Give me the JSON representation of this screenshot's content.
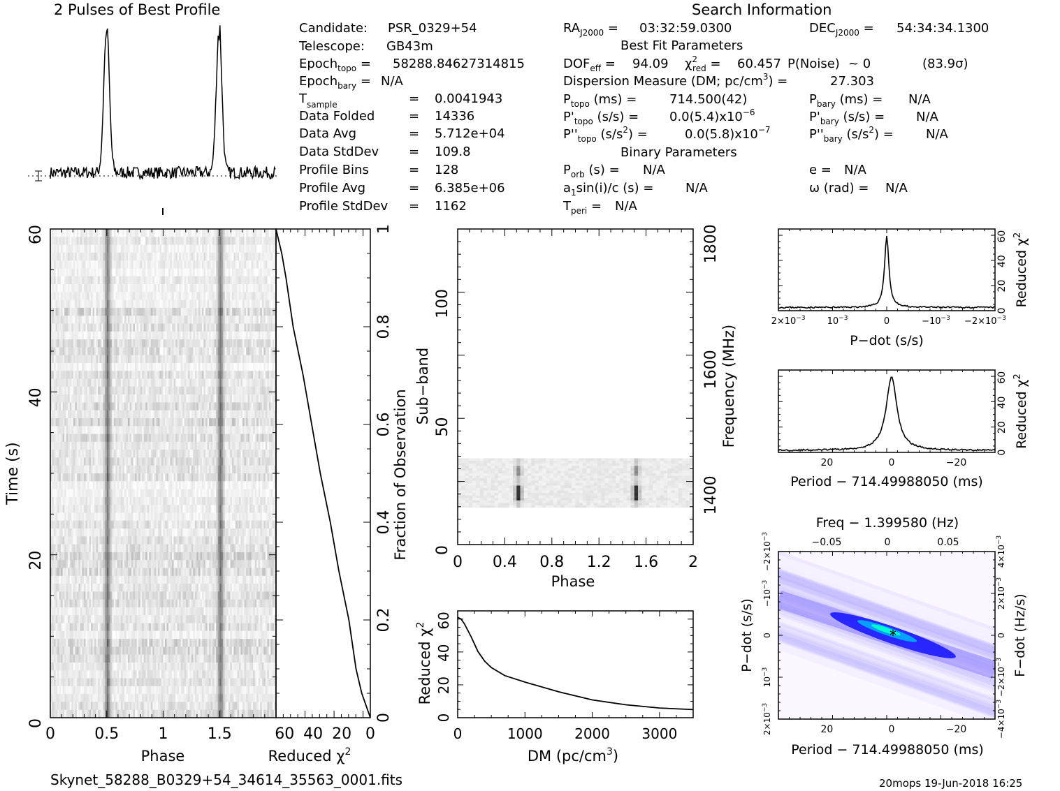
{
  "header": {
    "profile_title": "2 Pulses of Best Profile",
    "search_title": "Search Information",
    "filename": "Skynet_58288_B0329+54_34614_35563_0001.fits",
    "footer_right": "20mops 19-Jun-2018 16:25"
  },
  "info": {
    "candidate_label": "Candidate:",
    "candidate": "PSR_0329+54",
    "telescope_label": "Telescope:",
    "telescope": "GB43m",
    "epoch_topo": "58288.84627314815",
    "epoch_bary": "N/A",
    "t_sample": "0.0041943",
    "data_folded_label": "Data Folded",
    "data_folded": "14336",
    "data_avg_label": "Data Avg",
    "data_avg": "5.712e+04",
    "data_stddev_label": "Data StdDev",
    "data_stddev": "109.8",
    "profile_bins_label": "Profile Bins",
    "profile_bins": "128",
    "profile_avg_label": "Profile Avg",
    "profile_avg": "6.385e+06",
    "profile_stddev_label": "Profile StdDev",
    "profile_stddev": "1162"
  },
  "search": {
    "ra": "03:32:59.0300",
    "dec": "54:34:34.1300",
    "best_fit_title": "Best Fit Parameters",
    "dof_eff": "94.09",
    "chi2_red": "60.457",
    "p_noise": "~ 0",
    "sigma": "(83.9σ)",
    "dm_label": "Dispersion Measure (DM; pc/cm",
    "dm": "27.303",
    "p_topo": "714.500(42)",
    "pdot_topo": "0.0(5.4)x10",
    "pdot_topo_exp": "−6",
    "pddot_topo": "0.0(5.8)x10",
    "pddot_topo_exp": "−7",
    "p_bary": "N/A",
    "pdot_bary": "N/A",
    "pddot_bary": "N/A",
    "binary_title": "Binary Parameters",
    "p_orb": "N/A",
    "a1sini": "N/A",
    "t_peri": "N/A",
    "e": "N/A",
    "omega": "N/A"
  },
  "colors": {
    "ink": "#000000",
    "grid_gray": "#9a9a9a",
    "ppdot_low": "#ffffff",
    "ppdot_mid": "#b7b0ff",
    "ppdot_high": "#1010ff",
    "ppdot_peak": "#00ffd0"
  },
  "chart_data": [
    {
      "id": "profile",
      "type": "line",
      "title": "2 Pulses of Best Profile",
      "x_range": [
        0,
        2
      ],
      "pulse_centers": [
        0.5,
        1.5
      ],
      "pulse_width": 0.025,
      "baseline_level": 0.05,
      "noise_level": 0.04
    },
    {
      "id": "time_phase",
      "type": "heatmap",
      "xlabel": "Phase",
      "ylabel": "Time (s)",
      "x_range": [
        0,
        2
      ],
      "y_range": [
        0,
        60
      ],
      "x_ticks": [
        "0",
        "0.5",
        "1",
        "1.5"
      ],
      "y_ticks": [
        "0",
        "20",
        "40",
        "60"
      ],
      "pulse_phases": [
        0.5,
        1.5
      ],
      "rows": 62
    },
    {
      "id": "chi2_vs_fraction",
      "type": "line",
      "xlabel": "Reduced",
      "xlabel_sym": "χ",
      "ylabel": "Fraction of Observation",
      "x_ticks": [
        "60",
        "40",
        "20",
        "0"
      ],
      "y_ticks": [
        "0",
        "0.2",
        "0.4",
        "0.6",
        "0.8",
        "1"
      ],
      "x_range": [
        66,
        0
      ],
      "y_range": [
        0,
        1
      ],
      "points": [
        [
          0,
          0
        ],
        [
          6,
          0.05
        ],
        [
          10,
          0.1
        ],
        [
          15,
          0.2
        ],
        [
          22,
          0.3
        ],
        [
          28,
          0.4
        ],
        [
          35,
          0.5
        ],
        [
          41,
          0.6
        ],
        [
          47,
          0.7
        ],
        [
          54,
          0.8
        ],
        [
          59,
          0.9
        ],
        [
          62,
          0.95
        ],
        [
          66,
          1.0
        ]
      ]
    },
    {
      "id": "subband_phase",
      "type": "heatmap",
      "xlabel": "Phase",
      "ylabel": "Sub−band",
      "y2label": "Frequency (MHz)",
      "x_range": [
        0,
        2
      ],
      "y_range": [
        0,
        128
      ],
      "x_ticks": [
        "0",
        "0.4",
        "0.8",
        "1.2",
        "1.6",
        "2"
      ],
      "y_ticks": [
        "0",
        "50",
        "100"
      ],
      "y2_ticks": [
        "1400",
        "1600",
        "1800"
      ],
      "active_subbands": [
        15,
        35
      ],
      "pulse_phases": [
        0.5,
        1.5
      ]
    },
    {
      "id": "chi2_vs_dm",
      "type": "line",
      "xlabel": "DM (pc/cm",
      "ylabel": "Reduced",
      "ylabel_sym": "χ",
      "x_range": [
        0,
        3500
      ],
      "y_range": [
        0,
        66
      ],
      "x_ticks": [
        "0",
        "1000",
        "2000",
        "3000"
      ],
      "y_ticks": [
        "0",
        "20",
        "40",
        "60"
      ],
      "points": [
        [
          0,
          62
        ],
        [
          50,
          61
        ],
        [
          100,
          58
        ],
        [
          200,
          50
        ],
        [
          300,
          41
        ],
        [
          400,
          35
        ],
        [
          500,
          31
        ],
        [
          700,
          26
        ],
        [
          1000,
          22
        ],
        [
          1500,
          16
        ],
        [
          2000,
          11
        ],
        [
          2500,
          8
        ],
        [
          3000,
          6
        ],
        [
          3500,
          5
        ]
      ]
    },
    {
      "id": "chi2_vs_pdot",
      "type": "line",
      "xlabel": "P−dot (s/s)",
      "ylabel": "Reduced",
      "ylabel_sym": "χ",
      "x_range": [
        0.0022,
        -0.0022
      ],
      "y_range": [
        0,
        66
      ],
      "x_ticks": [
        "2×10",
        "10",
        "0",
        "−10",
        "−2×10"
      ],
      "x_tick_exp": "−3",
      "y_ticks": [
        "0",
        "20",
        "40",
        "60"
      ],
      "peak": 60,
      "base": 2
    },
    {
      "id": "chi2_vs_period",
      "type": "line",
      "xlabel": "Period − 714.49988050 (ms)",
      "ylabel": "Reduced",
      "ylabel_sym": "χ",
      "x_range": [
        35,
        -32
      ],
      "y_range": [
        0,
        66
      ],
      "x_ticks": [
        "20",
        "0",
        "−20"
      ],
      "y_ticks": [
        "0",
        "20",
        "40",
        "60"
      ],
      "peak": 60,
      "base": 1
    },
    {
      "id": "p_pdot",
      "type": "heatmap",
      "title": "Freq − 1.399580 (Hz)",
      "xlabel": "Period − 714.49988050 (ms)",
      "ylabel": "P−dot (s/s)",
      "y2label": "F−dot (Hz/s)",
      "x_range": [
        35,
        -32
      ],
      "x_ticks": [
        "20",
        "0",
        "−20"
      ],
      "top_ticks": [
        "−0.05",
        "0",
        "0.05"
      ],
      "y_ticks": [
        "2×10",
        "10",
        "0",
        "−10",
        "−2×10"
      ],
      "y_tick_exp": "−3",
      "y2_ticks": [
        "−4×10",
        "−2×10",
        "0",
        "2×10",
        "4×10"
      ],
      "y2_tick_exp": "−3"
    }
  ]
}
